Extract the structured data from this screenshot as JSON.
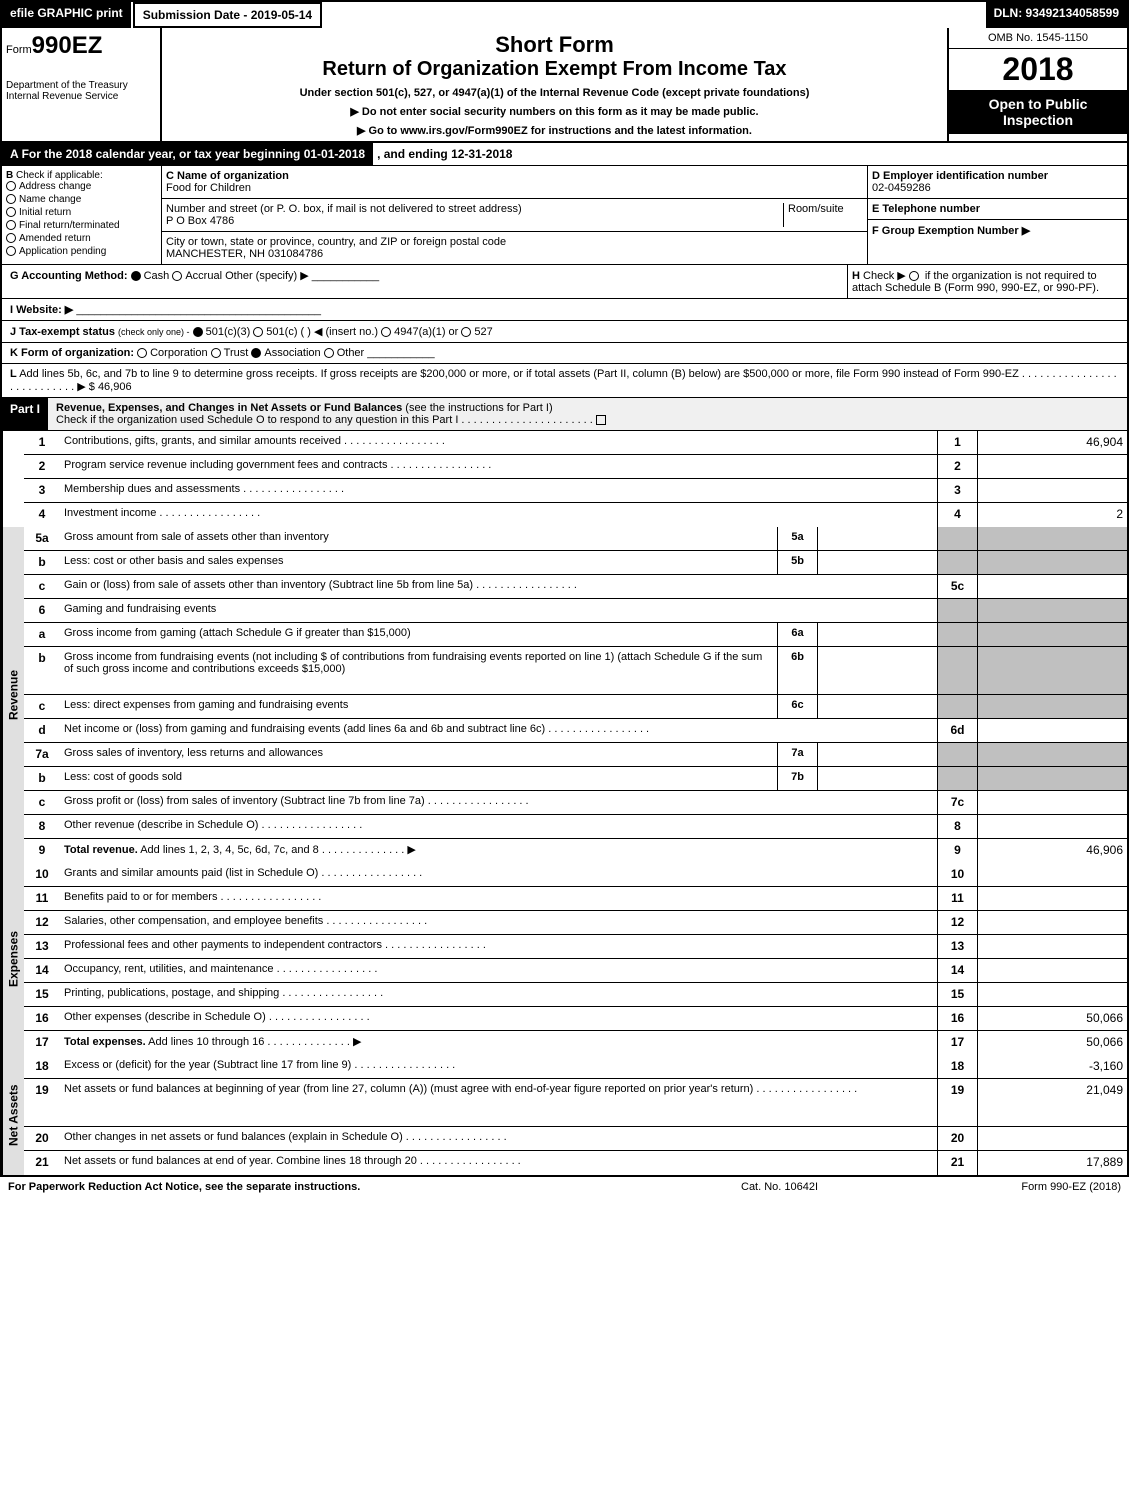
{
  "topbar": {
    "efile": "efile GRAPHIC print",
    "submission": "Submission Date - 2019-05-14",
    "dln": "DLN: 93492134058599"
  },
  "header": {
    "form_prefix": "Form",
    "form_number": "990EZ",
    "dept": "Department of the Treasury",
    "irs": "Internal Revenue Service",
    "short_form": "Short Form",
    "return_title": "Return of Organization Exempt From Income Tax",
    "under_section": "Under section 501(c), 527, or 4947(a)(1) of the Internal Revenue Code (except private foundations)",
    "ssn_note": "▶ Do not enter social security numbers on this form as it may be made public.",
    "goto": "▶ Go to www.irs.gov/Form990EZ for instructions and the latest information.",
    "omb": "OMB No. 1545-1150",
    "year": "2018",
    "open": "Open to Public Inspection"
  },
  "line_a": {
    "label": "A",
    "text": "For the 2018 calendar year, or tax year beginning 01-01-2018",
    "ending": ", and ending 12-31-2018"
  },
  "section_b": {
    "label": "B",
    "heading": "Check if applicable:",
    "items": [
      "Address change",
      "Name change",
      "Initial return",
      "Final return/terminated",
      "Amended return",
      "Application pending"
    ]
  },
  "section_c": {
    "name_label": "C Name of organization",
    "name": "Food for Children",
    "street_label": "Number and street (or P. O. box, if mail is not delivered to street address)",
    "room_label": "Room/suite",
    "street": "P O Box 4786",
    "city_label": "City or town, state or province, country, and ZIP or foreign postal code",
    "city": "MANCHESTER, NH  031084786"
  },
  "section_d": {
    "label": "D Employer identification number",
    "ein": "02-0459286"
  },
  "section_e": {
    "label": "E Telephone number"
  },
  "section_f": {
    "label": "F Group Exemption Number  ▶"
  },
  "line_g": {
    "label": "G Accounting Method:",
    "cash": "Cash",
    "accrual": "Accrual",
    "other": "Other (specify) ▶"
  },
  "line_h": {
    "label": "H",
    "text": "Check ▶",
    "note": "if the organization is not required to attach Schedule B (Form 990, 990-EZ, or 990-PF)."
  },
  "line_i": {
    "label": "I Website: ▶"
  },
  "line_j": {
    "label": "J Tax-exempt status",
    "note": "(check only one) -",
    "opts": [
      "501(c)(3)",
      "501(c) (   ) ◀ (insert no.)",
      "4947(a)(1) or",
      "527"
    ]
  },
  "line_k": {
    "label": "K Form of organization:",
    "opts": [
      "Corporation",
      "Trust",
      "Association",
      "Other"
    ]
  },
  "line_l": {
    "label": "L",
    "text": "Add lines 5b, 6c, and 7b to line 9 to determine gross receipts. If gross receipts are $200,000 or more, or if total assets (Part II, column (B) below) are $500,000 or more, file Form 990 instead of Form 990-EZ",
    "arrow": "▶ $ 46,906"
  },
  "part1": {
    "label": "Part I",
    "title": "Revenue, Expenses, and Changes in Net Assets or Fund Balances",
    "note": "(see the instructions for Part I)",
    "check": "Check if the organization used Schedule O to respond to any question in this Part I"
  },
  "side_labels": {
    "blank": "",
    "revenue": "Revenue",
    "expenses": "Expenses",
    "netassets": "Net Assets"
  },
  "rows": [
    {
      "n": "1",
      "desc": "Contributions, gifts, grants, and similar amounts received",
      "ln": "1",
      "val": "46,904"
    },
    {
      "n": "2",
      "desc": "Program service revenue including government fees and contracts",
      "ln": "2",
      "val": ""
    },
    {
      "n": "3",
      "desc": "Membership dues and assessments",
      "ln": "3",
      "val": ""
    },
    {
      "n": "4",
      "desc": "Investment income",
      "ln": "4",
      "val": "2"
    },
    {
      "n": "5a",
      "desc": "Gross amount from sale of assets other than inventory",
      "sub": "5a",
      "subval": "",
      "shaded": true
    },
    {
      "n": "b",
      "desc": "Less: cost or other basis and sales expenses",
      "sub": "5b",
      "subval": "",
      "shaded": true
    },
    {
      "n": "c",
      "desc": "Gain or (loss) from sale of assets other than inventory (Subtract line 5b from line 5a)",
      "ln": "5c",
      "val": ""
    },
    {
      "n": "6",
      "desc": "Gaming and fundraising events",
      "shaded": true,
      "noln": true
    },
    {
      "n": "a",
      "desc": "Gross income from gaming (attach Schedule G if greater than $15,000)",
      "sub": "6a",
      "subval": "",
      "shaded": true
    },
    {
      "n": "b",
      "desc": "Gross income from fundraising events (not including $                    of contributions from fundraising events reported on line 1) (attach Schedule G if the sum of such gross income and contributions exceeds $15,000)",
      "sub": "6b",
      "subval": "",
      "shaded": true,
      "tall": true
    },
    {
      "n": "c",
      "desc": "Less: direct expenses from gaming and fundraising events",
      "sub": "6c",
      "subval": "",
      "shaded": true
    },
    {
      "n": "d",
      "desc": "Net income or (loss) from gaming and fundraising events (add lines 6a and 6b and subtract line 6c)",
      "ln": "6d",
      "val": ""
    },
    {
      "n": "7a",
      "desc": "Gross sales of inventory, less returns and allowances",
      "sub": "7a",
      "subval": "",
      "shaded": true
    },
    {
      "n": "b",
      "desc": "Less: cost of goods sold",
      "sub": "7b",
      "subval": "",
      "shaded": true
    },
    {
      "n": "c",
      "desc": "Gross profit or (loss) from sales of inventory (Subtract line 7b from line 7a)",
      "ln": "7c",
      "val": ""
    },
    {
      "n": "8",
      "desc": "Other revenue (describe in Schedule O)",
      "ln": "8",
      "val": ""
    },
    {
      "n": "9",
      "desc": "Total revenue. Add lines 1, 2, 3, 4, 5c, 6d, 7c, and 8",
      "ln": "9",
      "val": "46,906",
      "bold": true,
      "arrow": true
    }
  ],
  "exp_rows": [
    {
      "n": "10",
      "desc": "Grants and similar amounts paid (list in Schedule O)",
      "ln": "10",
      "val": ""
    },
    {
      "n": "11",
      "desc": "Benefits paid to or for members",
      "ln": "11",
      "val": ""
    },
    {
      "n": "12",
      "desc": "Salaries, other compensation, and employee benefits",
      "ln": "12",
      "val": ""
    },
    {
      "n": "13",
      "desc": "Professional fees and other payments to independent contractors",
      "ln": "13",
      "val": ""
    },
    {
      "n": "14",
      "desc": "Occupancy, rent, utilities, and maintenance",
      "ln": "14",
      "val": ""
    },
    {
      "n": "15",
      "desc": "Printing, publications, postage, and shipping",
      "ln": "15",
      "val": ""
    },
    {
      "n": "16",
      "desc": "Other expenses (describe in Schedule O)",
      "ln": "16",
      "val": "50,066"
    },
    {
      "n": "17",
      "desc": "Total expenses. Add lines 10 through 16",
      "ln": "17",
      "val": "50,066",
      "bold": true,
      "arrow": true
    }
  ],
  "net_rows": [
    {
      "n": "18",
      "desc": "Excess or (deficit) for the year (Subtract line 17 from line 9)",
      "ln": "18",
      "val": "-3,160"
    },
    {
      "n": "19",
      "desc": "Net assets or fund balances at beginning of year (from line 27, column (A)) (must agree with end-of-year figure reported on prior year's return)",
      "ln": "19",
      "val": "21,049",
      "tall": true
    },
    {
      "n": "20",
      "desc": "Other changes in net assets or fund balances (explain in Schedule O)",
      "ln": "20",
      "val": ""
    },
    {
      "n": "21",
      "desc": "Net assets or fund balances at end of year. Combine lines 18 through 20",
      "ln": "21",
      "val": "17,889"
    }
  ],
  "footer": {
    "pra": "For Paperwork Reduction Act Notice, see the separate instructions.",
    "cat": "Cat. No. 10642I",
    "form": "Form 990-EZ (2018)"
  }
}
